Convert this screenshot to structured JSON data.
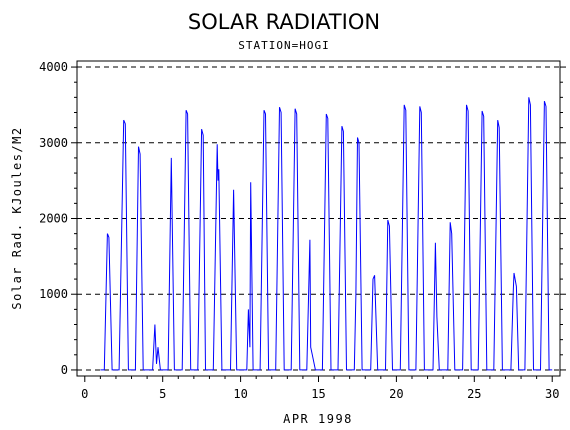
{
  "chart_data": {
    "type": "line",
    "title": "SOLAR RADIATION",
    "subtitle": "STATION=HOGI",
    "xlabel": "APR 1998",
    "ylabel": "Solar Rad. KJoules/M2",
    "xlim": [
      -0.5,
      30.5
    ],
    "ylim": [
      -80,
      4080
    ],
    "x_ticks": [
      0,
      5,
      10,
      15,
      20,
      25,
      30
    ],
    "y_ticks": [
      0,
      1000,
      2000,
      3000,
      4000
    ],
    "grid": "horizontal dashed",
    "line_color": "#0000ff",
    "series": [
      {
        "values": [
          [
            1.25,
            0
          ],
          [
            1.45,
            1800
          ],
          [
            1.55,
            1750
          ],
          [
            1.75,
            0
          ],
          [
            2.2,
            0
          ],
          [
            2.5,
            3300
          ],
          [
            2.6,
            3250
          ],
          [
            2.8,
            0
          ],
          [
            3.25,
            0
          ],
          [
            3.45,
            2950
          ],
          [
            3.55,
            2850
          ],
          [
            3.75,
            0
          ],
          [
            4.35,
            0
          ],
          [
            4.5,
            600
          ],
          [
            4.6,
            80
          ],
          [
            4.7,
            300
          ],
          [
            4.85,
            0
          ],
          [
            5.35,
            0
          ],
          [
            5.55,
            2800
          ],
          [
            5.75,
            0
          ],
          [
            6.25,
            0
          ],
          [
            6.5,
            3430
          ],
          [
            6.6,
            3380
          ],
          [
            6.8,
            0
          ],
          [
            7.25,
            0
          ],
          [
            7.5,
            3180
          ],
          [
            7.6,
            3100
          ],
          [
            7.75,
            0
          ],
          [
            8.25,
            0
          ],
          [
            8.5,
            2980
          ],
          [
            8.55,
            2500
          ],
          [
            8.6,
            2650
          ],
          [
            8.8,
            0
          ],
          [
            9.35,
            0
          ],
          [
            9.55,
            2380
          ],
          [
            9.75,
            0
          ],
          [
            10.4,
            0
          ],
          [
            10.5,
            800
          ],
          [
            10.6,
            300
          ],
          [
            10.65,
            2480
          ],
          [
            10.8,
            0
          ],
          [
            11.25,
            0
          ],
          [
            11.5,
            3430
          ],
          [
            11.6,
            3380
          ],
          [
            11.8,
            0
          ],
          [
            12.25,
            0
          ],
          [
            12.5,
            3470
          ],
          [
            12.6,
            3400
          ],
          [
            12.8,
            0
          ],
          [
            13.25,
            0
          ],
          [
            13.5,
            3450
          ],
          [
            13.6,
            3380
          ],
          [
            13.8,
            0
          ],
          [
            14.25,
            0
          ],
          [
            14.45,
            1720
          ],
          [
            14.5,
            300
          ],
          [
            14.6,
            200
          ],
          [
            14.8,
            0
          ],
          [
            15.25,
            0
          ],
          [
            15.5,
            3380
          ],
          [
            15.6,
            3320
          ],
          [
            15.8,
            0
          ],
          [
            16.25,
            0
          ],
          [
            16.5,
            3220
          ],
          [
            16.6,
            3150
          ],
          [
            16.8,
            0
          ],
          [
            17.3,
            0
          ],
          [
            17.4,
            1000
          ],
          [
            17.5,
            3070
          ],
          [
            17.6,
            3000
          ],
          [
            17.8,
            0
          ],
          [
            18.35,
            0
          ],
          [
            18.5,
            1200
          ],
          [
            18.6,
            1250
          ],
          [
            18.8,
            0
          ],
          [
            19.3,
            0
          ],
          [
            19.45,
            1980
          ],
          [
            19.55,
            1900
          ],
          [
            19.75,
            0
          ],
          [
            20.25,
            0
          ],
          [
            20.5,
            3500
          ],
          [
            20.6,
            3430
          ],
          [
            20.8,
            0
          ],
          [
            21.25,
            0
          ],
          [
            21.5,
            3480
          ],
          [
            21.6,
            3400
          ],
          [
            21.8,
            0
          ],
          [
            22.35,
            0
          ],
          [
            22.5,
            1680
          ],
          [
            22.6,
            700
          ],
          [
            22.75,
            0
          ],
          [
            23.3,
            0
          ],
          [
            23.45,
            1950
          ],
          [
            23.55,
            1800
          ],
          [
            23.75,
            0
          ],
          [
            24.25,
            0
          ],
          [
            24.5,
            3500
          ],
          [
            24.6,
            3420
          ],
          [
            24.8,
            0
          ],
          [
            25.25,
            0
          ],
          [
            25.5,
            3420
          ],
          [
            25.6,
            3350
          ],
          [
            25.8,
            0
          ],
          [
            26.25,
            0
          ],
          [
            26.5,
            3300
          ],
          [
            26.6,
            3200
          ],
          [
            26.8,
            0
          ],
          [
            27.35,
            0
          ],
          [
            27.5,
            1050
          ],
          [
            27.55,
            1280
          ],
          [
            27.7,
            1100
          ],
          [
            27.85,
            0
          ],
          [
            28.25,
            0
          ],
          [
            28.5,
            3600
          ],
          [
            28.6,
            3500
          ],
          [
            28.8,
            0
          ],
          [
            29.25,
            0
          ],
          [
            29.5,
            3550
          ],
          [
            29.6,
            3480
          ],
          [
            29.8,
            0
          ]
        ]
      }
    ]
  }
}
